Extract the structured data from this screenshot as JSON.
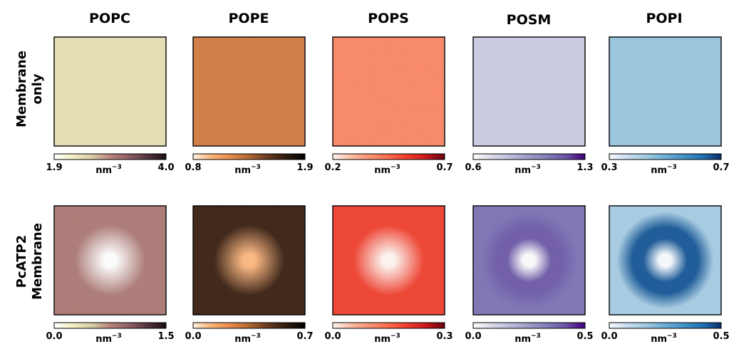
{
  "chart_data": {
    "type": "heatmap",
    "unit_base": "nm",
    "unit_exp": "−3",
    "columns": [
      "POPC",
      "POPE",
      "POPS",
      "POSM",
      "POPI"
    ],
    "rows": [
      {
        "label_lines": [
          "Membrane",
          "only"
        ]
      },
      {
        "label_lines": [
          "PcATP2",
          "Membrane"
        ]
      }
    ],
    "colormaps": {
      "POPC": [
        "#ffffff",
        "#f3f0c3",
        "#d8cfa5",
        "#b9857d",
        "#8f5f63",
        "#553540",
        "#1a0e12"
      ],
      "POPE": [
        "#fff0e0",
        "#fdb275",
        "#e88a4e",
        "#b06830",
        "#6a3a1e",
        "#2e1a0e",
        "#000000"
      ],
      "POPS": [
        "#fff5f0",
        "#fcbba1",
        "#fc9272",
        "#fb6a4a",
        "#ef3b2c",
        "#cb181d",
        "#67000d"
      ],
      "POSM": [
        "#fcfbfd",
        "#dadaeb",
        "#bcbddc",
        "#9e9ac8",
        "#807dba",
        "#6a51a3",
        "#3f007d"
      ],
      "POPI": [
        "#f7fbff",
        "#c6dbef",
        "#9ecae1",
        "#6baed6",
        "#4292c6",
        "#2171b5",
        "#08306b"
      ]
    },
    "panels": [
      [
        {
          "column": "POPC",
          "row": 0,
          "vmin": 1.9,
          "vmax": 4.0,
          "tick_min": "1.9",
          "tick_max": "4.0",
          "background_fraction": 0.25,
          "center_fraction": 0.25,
          "ring_fraction": 0.25
        },
        {
          "column": "POPE",
          "row": 0,
          "vmin": 0.8,
          "vmax": 1.9,
          "tick_min": "0.8",
          "tick_max": "1.9",
          "background_fraction": 0.4,
          "center_fraction": 0.4,
          "ring_fraction": 0.4
        },
        {
          "column": "POPS",
          "row": 0,
          "vmin": 0.2,
          "vmax": 0.7,
          "tick_min": "0.2",
          "tick_max": "0.7",
          "background_fraction": 0.38,
          "center_fraction": 0.38,
          "ring_fraction": 0.38
        },
        {
          "column": "POSM",
          "row": 0,
          "vmin": 0.6,
          "vmax": 1.3,
          "tick_min": "0.6",
          "tick_max": "1.3",
          "background_fraction": 0.25,
          "center_fraction": 0.25,
          "ring_fraction": 0.25
        },
        {
          "column": "POPI",
          "row": 0,
          "vmin": 0.3,
          "vmax": 0.7,
          "tick_min": "0.3",
          "tick_max": "0.7",
          "background_fraction": 0.35,
          "center_fraction": 0.35,
          "ring_fraction": 0.35
        }
      ],
      [
        {
          "column": "POPC",
          "row": 1,
          "vmin": 0.0,
          "vmax": 1.5,
          "tick_min": "0.0",
          "tick_max": "1.5",
          "background_fraction": 0.55,
          "center_fraction": 0.0,
          "ring_fraction": 0.55
        },
        {
          "column": "POPE",
          "row": 1,
          "vmin": 0.0,
          "vmax": 0.7,
          "tick_min": "0.0",
          "tick_max": "0.7",
          "background_fraction": 0.8,
          "center_fraction": 0.15,
          "ring_fraction": 0.8
        },
        {
          "column": "POPS",
          "row": 1,
          "vmin": 0.0,
          "vmax": 0.3,
          "tick_min": "0.0",
          "tick_max": "0.3",
          "background_fraction": 0.65,
          "center_fraction": 0.0,
          "ring_fraction": 0.65
        },
        {
          "column": "POSM",
          "row": 1,
          "vmin": 0.0,
          "vmax": 0.5,
          "tick_min": "0.0",
          "tick_max": "0.5",
          "background_fraction": 0.7,
          "center_fraction": 0.0,
          "ring_fraction": 0.8
        },
        {
          "column": "POPI",
          "row": 1,
          "vmin": 0.0,
          "vmax": 0.5,
          "tick_min": "0.0",
          "tick_max": "0.5",
          "background_fraction": 0.3,
          "center_fraction": 0.0,
          "ring_fraction": 0.9
        }
      ]
    ]
  }
}
